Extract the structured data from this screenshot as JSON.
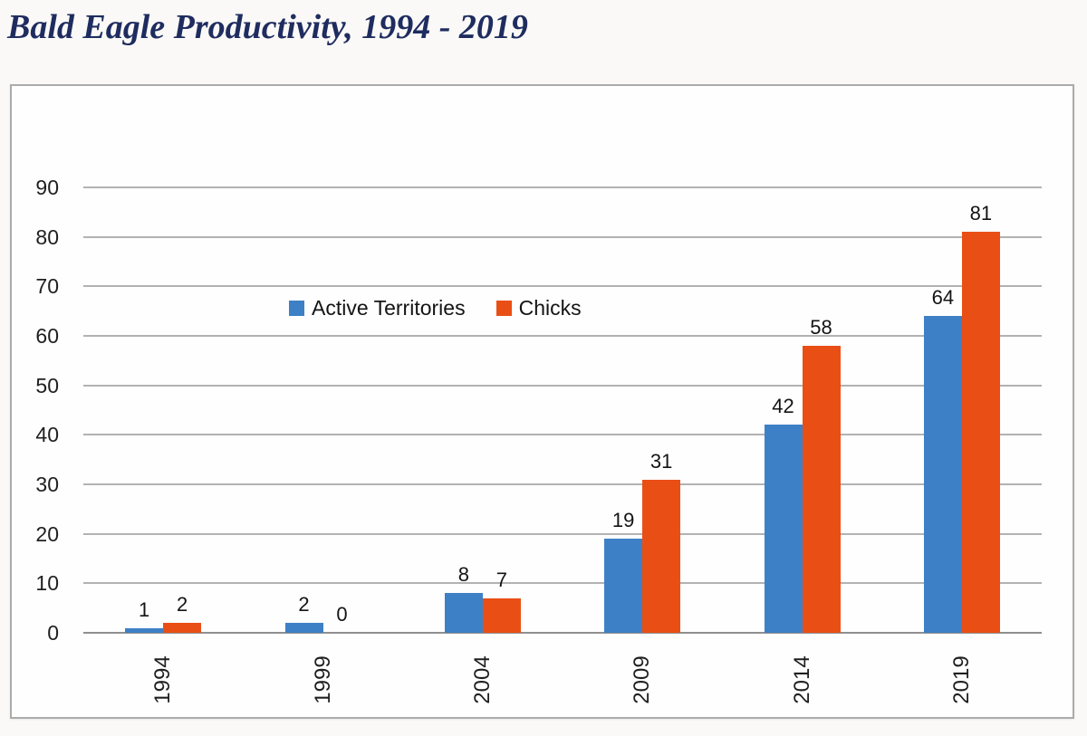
{
  "page": {
    "title": "Bald Eagle Productivity, 1994 - 2019",
    "title_color": "#1f2c5f"
  },
  "chart_data": {
    "type": "bar",
    "title": "Bald Eagle Productivity, 1994 - 2019",
    "categories": [
      "1994",
      "1999",
      "2004",
      "2009",
      "2014",
      "2019"
    ],
    "series": [
      {
        "name": "Active Territories",
        "color": "#3e80c6",
        "values": [
          1,
          2,
          8,
          19,
          42,
          64
        ]
      },
      {
        "name": "Chicks",
        "color": "#e94f15",
        "values": [
          2,
          0,
          7,
          31,
          58,
          81
        ]
      }
    ],
    "y_ticks": [
      0,
      10,
      20,
      30,
      40,
      50,
      60,
      70,
      80,
      90
    ],
    "ylim": [
      0,
      90
    ],
    "xlabel": "",
    "ylabel": "",
    "grid": true,
    "data_labels": true,
    "legend_position": "inside-top-left",
    "gridline_color": "#b2b2b2"
  }
}
